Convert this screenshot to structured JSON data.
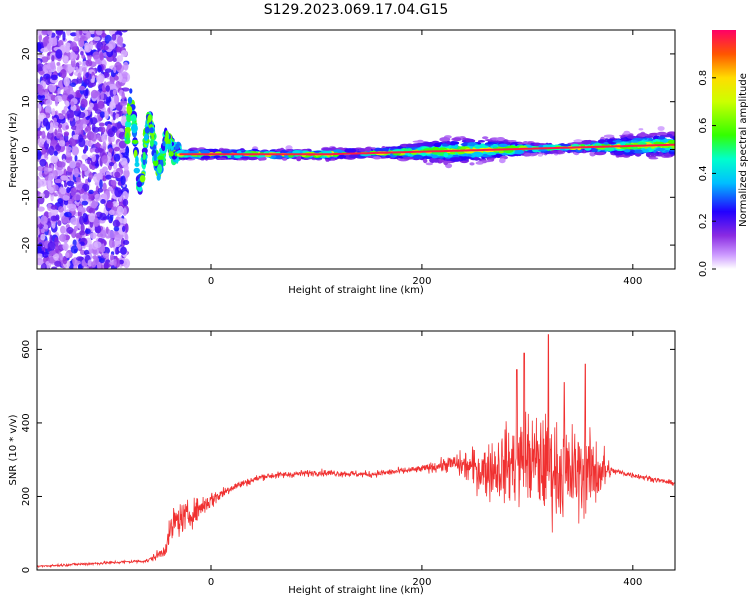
{
  "title": "S129.2023.069.17.04.G15",
  "charts": [
    {
      "type": "heatmap",
      "name": "spectrogram",
      "xlabel": "Height of straight line (km)",
      "ylabel": "Frequency (Hz)",
      "xlim": [
        -165,
        440
      ],
      "ylim": [
        -25,
        25
      ],
      "xticks": [
        0,
        200,
        400
      ],
      "yticks": [
        -20,
        -10,
        0,
        10,
        20
      ],
      "colorbar": {
        "label": "Normalized spectral amplitude",
        "range": [
          0,
          1
        ],
        "ticks": [
          0.0,
          0.2,
          0.4,
          0.6,
          0.8
        ],
        "colormap": "rainbow"
      },
      "regions": [
        {
          "x": [
            -165,
            -80
          ],
          "desc": "noise",
          "amplitude": 0.15
        },
        {
          "x": [
            -80,
            -30
          ],
          "desc": "chirp",
          "amplitude": 0.6
        },
        {
          "x": [
            -30,
            110
          ],
          "desc": "tone",
          "freq": -1,
          "amplitude": 0.9
        },
        {
          "x": [
            110,
            440
          ],
          "desc": "tone-with-spread",
          "freq_start": -1,
          "freq_end": 1,
          "amplitude": 0.85
        }
      ]
    },
    {
      "type": "line",
      "name": "snr",
      "xlabel": "Height of straight line (km)",
      "ylabel": "SNR (10 * v/v)",
      "xlim": [
        -165,
        440
      ],
      "ylim": [
        0,
        650
      ],
      "xticks": [
        0,
        200,
        400
      ],
      "yticks": [
        0,
        200,
        400,
        600
      ],
      "color": "#f03030",
      "envelope": {
        "x": [
          -165,
          -60,
          -45,
          -35,
          -20,
          0,
          20,
          50,
          100,
          150,
          200,
          230,
          260,
          300,
          340,
          370,
          380,
          440
        ],
        "mean": [
          10,
          25,
          50,
          130,
          150,
          190,
          225,
          255,
          265,
          260,
          275,
          290,
          270,
          300,
          260,
          270,
          270,
          235
        ],
        "spread": [
          5,
          8,
          30,
          80,
          60,
          40,
          20,
          15,
          15,
          15,
          15,
          40,
          120,
          220,
          220,
          150,
          15,
          10
        ],
        "peaks": [
          [
            320,
            640
          ],
          [
            297,
            590
          ],
          [
            335,
            510
          ],
          [
            355,
            560
          ],
          [
            290,
            545
          ]
        ]
      }
    }
  ]
}
